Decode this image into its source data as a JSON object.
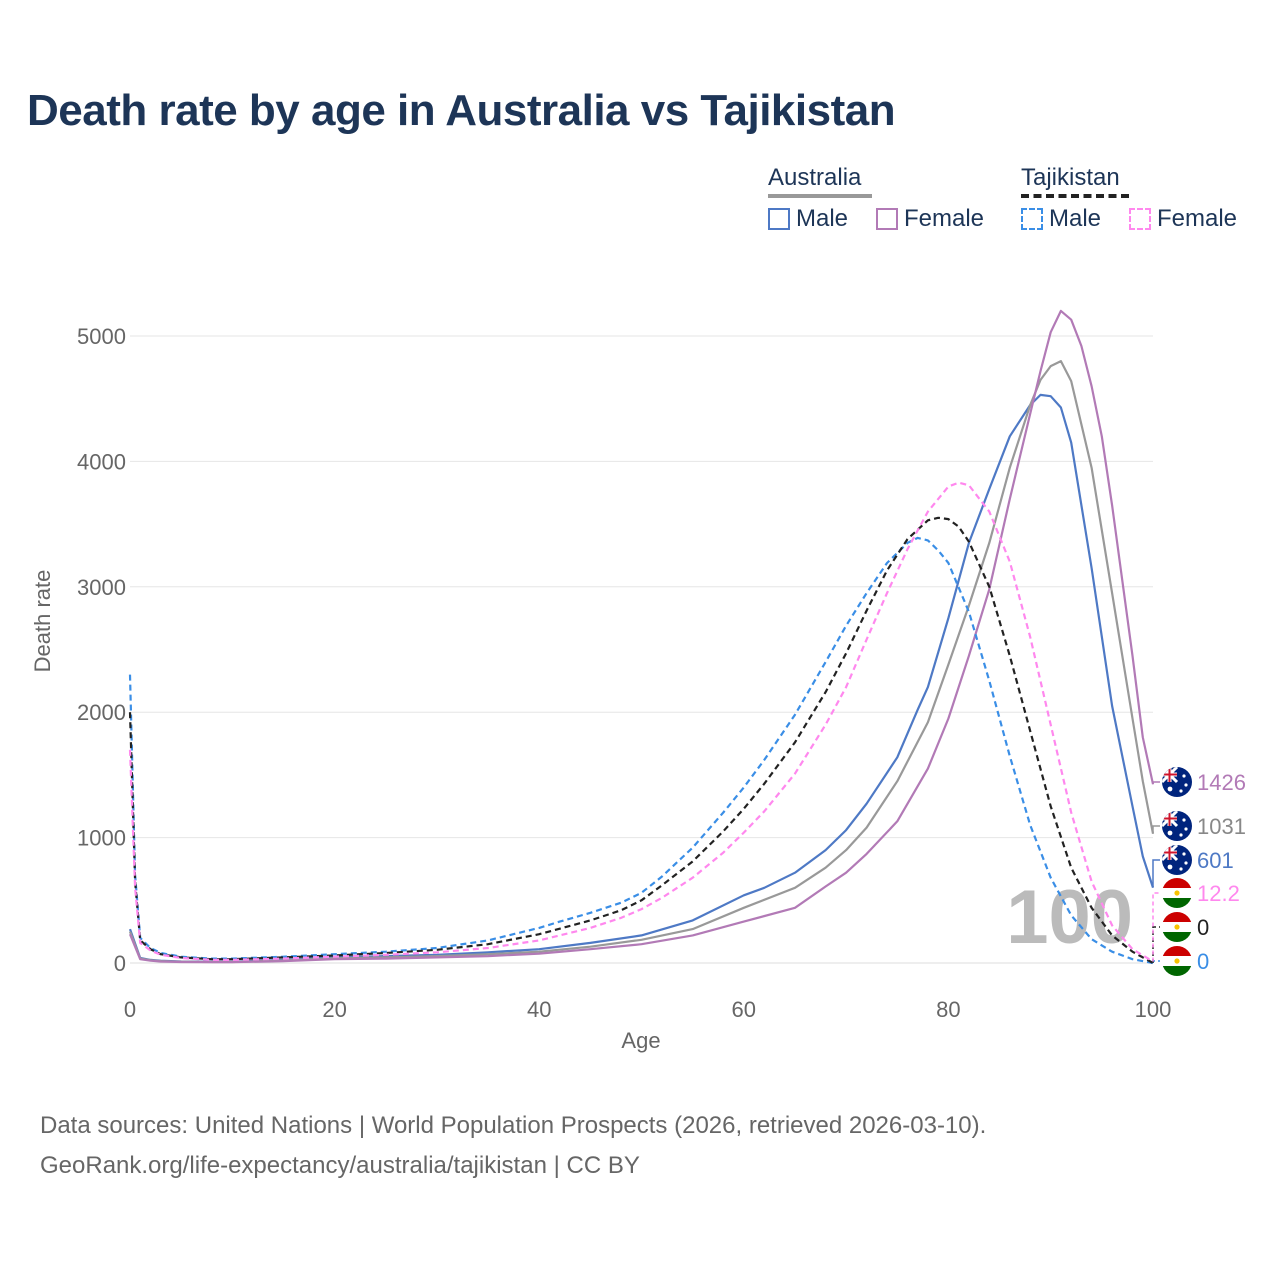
{
  "title": "Death rate by age in Australia vs Tajikistan",
  "legend": {
    "groups": [
      {
        "name": "Australia",
        "items": [
          {
            "label": "Male",
            "color": "#4e79c5",
            "dashed": false
          },
          {
            "label": "Female",
            "color": "#b27ab6",
            "dashed": false
          }
        ]
      },
      {
        "name": "Tajikistan",
        "items": [
          {
            "label": "Male",
            "color": "#3a8ee6",
            "dashed": true
          },
          {
            "label": "Female",
            "color": "#ff88ee",
            "dashed": true
          }
        ]
      }
    ]
  },
  "source": {
    "line1": "Data sources: United Nations | World Population Prospects (2026, retrieved 2026-03-10).",
    "line2": "GeoRank.org/life-expectancy/australia/tajikistan | CC BY"
  },
  "chart_data": {
    "type": "line",
    "title": "Death rate by age in Australia vs Tajikistan",
    "xlabel": "Age",
    "ylabel": "Death rate",
    "xlim": [
      0,
      100
    ],
    "ylim": [
      0,
      5300
    ],
    "xticks": [
      0,
      20,
      40,
      60,
      80,
      100
    ],
    "yticks": [
      0,
      1000,
      2000,
      3000,
      4000,
      5000
    ],
    "watermark": "100",
    "series": [
      {
        "name": "Australia Male",
        "color": "#4e79c5",
        "dashed": false,
        "end_label": "601",
        "flag": "australia",
        "x": [
          0,
          1,
          2,
          3,
          5,
          8,
          10,
          15,
          20,
          25,
          30,
          35,
          40,
          45,
          50,
          55,
          60,
          62,
          65,
          68,
          70,
          72,
          75,
          77,
          78,
          80,
          82,
          84,
          86,
          88,
          89,
          90,
          91,
          92,
          94,
          96,
          98,
          99,
          100
        ],
        "y": [
          270,
          40,
          25,
          18,
          12,
          10,
          10,
          25,
          45,
          55,
          65,
          85,
          110,
          160,
          220,
          340,
          540,
          600,
          720,
          900,
          1060,
          1270,
          1640,
          2020,
          2200,
          2750,
          3350,
          3780,
          4200,
          4450,
          4530,
          4520,
          4430,
          4150,
          3150,
          2050,
          1250,
          850,
          601
        ]
      },
      {
        "name": "Australia Persons",
        "color": "#999999",
        "dashed": false,
        "end_label": "1031",
        "flag": "australia",
        "x": [
          0,
          1,
          2,
          3,
          5,
          8,
          10,
          15,
          20,
          25,
          30,
          35,
          40,
          45,
          50,
          55,
          60,
          65,
          68,
          70,
          72,
          75,
          78,
          80,
          82,
          84,
          86,
          88,
          89,
          90,
          91,
          92,
          94,
          96,
          98,
          99,
          100
        ],
        "y": [
          250,
          35,
          22,
          15,
          10,
          8,
          8,
          20,
          38,
          45,
          55,
          70,
          90,
          130,
          185,
          270,
          440,
          600,
          760,
          900,
          1080,
          1450,
          1920,
          2380,
          2850,
          3350,
          3950,
          4450,
          4650,
          4760,
          4800,
          4640,
          3950,
          2950,
          1950,
          1450,
          1031
        ]
      },
      {
        "name": "Australia Female",
        "color": "#b27ab6",
        "dashed": false,
        "end_label": "1426",
        "flag": "australia",
        "x": [
          0,
          1,
          2,
          3,
          5,
          8,
          10,
          15,
          20,
          25,
          30,
          35,
          40,
          45,
          50,
          55,
          60,
          65,
          68,
          70,
          72,
          75,
          78,
          80,
          82,
          84,
          86,
          88,
          89,
          90,
          91,
          92,
          93,
          94,
          95,
          96,
          98,
          99,
          100
        ],
        "y": [
          230,
          30,
          18,
          12,
          8,
          6,
          6,
          15,
          30,
          35,
          45,
          55,
          75,
          110,
          150,
          220,
          330,
          440,
          610,
          720,
          870,
          1130,
          1550,
          1950,
          2450,
          2980,
          3700,
          4380,
          4720,
          5030,
          5200,
          5130,
          4920,
          4600,
          4200,
          3650,
          2450,
          1800,
          1426
        ]
      },
      {
        "name": "Tajikistan Male",
        "color": "#3a8ee6",
        "dashed": true,
        "end_label": "0",
        "flag": "tajikistan",
        "x": [
          0,
          0.5,
          1,
          2,
          3,
          5,
          8,
          10,
          15,
          20,
          25,
          30,
          35,
          40,
          42,
          45,
          48,
          50,
          52,
          55,
          58,
          60,
          62,
          65,
          68,
          70,
          72,
          74,
          76,
          77,
          78,
          79,
          80,
          82,
          84,
          86,
          88,
          90,
          92,
          94,
          96,
          98,
          100
        ],
        "y": [
          2300,
          700,
          200,
          120,
          80,
          50,
          35,
          35,
          50,
          70,
          90,
          120,
          180,
          280,
          330,
          400,
          480,
          560,
          690,
          920,
          1200,
          1400,
          1620,
          1980,
          2400,
          2690,
          2950,
          3190,
          3350,
          3390,
          3370,
          3290,
          3190,
          2800,
          2250,
          1650,
          1100,
          680,
          380,
          190,
          90,
          30,
          0
        ]
      },
      {
        "name": "Tajikistan Persons",
        "color": "#222222",
        "dashed": true,
        "end_label": "0",
        "flag": "tajikistan",
        "x": [
          0,
          0.5,
          1,
          2,
          3,
          5,
          8,
          10,
          15,
          20,
          25,
          30,
          35,
          40,
          45,
          48,
          50,
          52,
          55,
          58,
          60,
          62,
          65,
          68,
          70,
          72,
          74,
          76,
          78,
          79,
          80,
          81,
          82,
          84,
          86,
          88,
          90,
          92,
          94,
          96,
          98,
          100
        ],
        "y": [
          2000,
          650,
          180,
          110,
          70,
          45,
          30,
          30,
          45,
          60,
          80,
          105,
          150,
          230,
          340,
          420,
          500,
          620,
          810,
          1050,
          1230,
          1430,
          1760,
          2160,
          2470,
          2810,
          3130,
          3380,
          3530,
          3550,
          3540,
          3480,
          3360,
          3000,
          2450,
          1850,
          1250,
          760,
          440,
          220,
          90,
          0
        ]
      },
      {
        "name": "Tajikistan Female",
        "color": "#ff88ee",
        "dashed": true,
        "end_label": "12.2",
        "flag": "tajikistan",
        "x": [
          0,
          0.5,
          1,
          2,
          3,
          5,
          8,
          10,
          15,
          20,
          25,
          30,
          35,
          40,
          45,
          48,
          50,
          52,
          55,
          58,
          60,
          62,
          65,
          68,
          70,
          72,
          74,
          76,
          78,
          80,
          81,
          82,
          84,
          86,
          88,
          90,
          92,
          94,
          96,
          98,
          100
        ],
        "y": [
          1700,
          600,
          160,
          100,
          65,
          40,
          25,
          25,
          35,
          50,
          65,
          85,
          120,
          180,
          280,
          360,
          430,
          520,
          680,
          880,
          1040,
          1210,
          1510,
          1900,
          2200,
          2580,
          2950,
          3300,
          3600,
          3800,
          3830,
          3810,
          3600,
          3200,
          2600,
          1900,
          1200,
          650,
          300,
          110,
          12.2
        ]
      }
    ]
  }
}
